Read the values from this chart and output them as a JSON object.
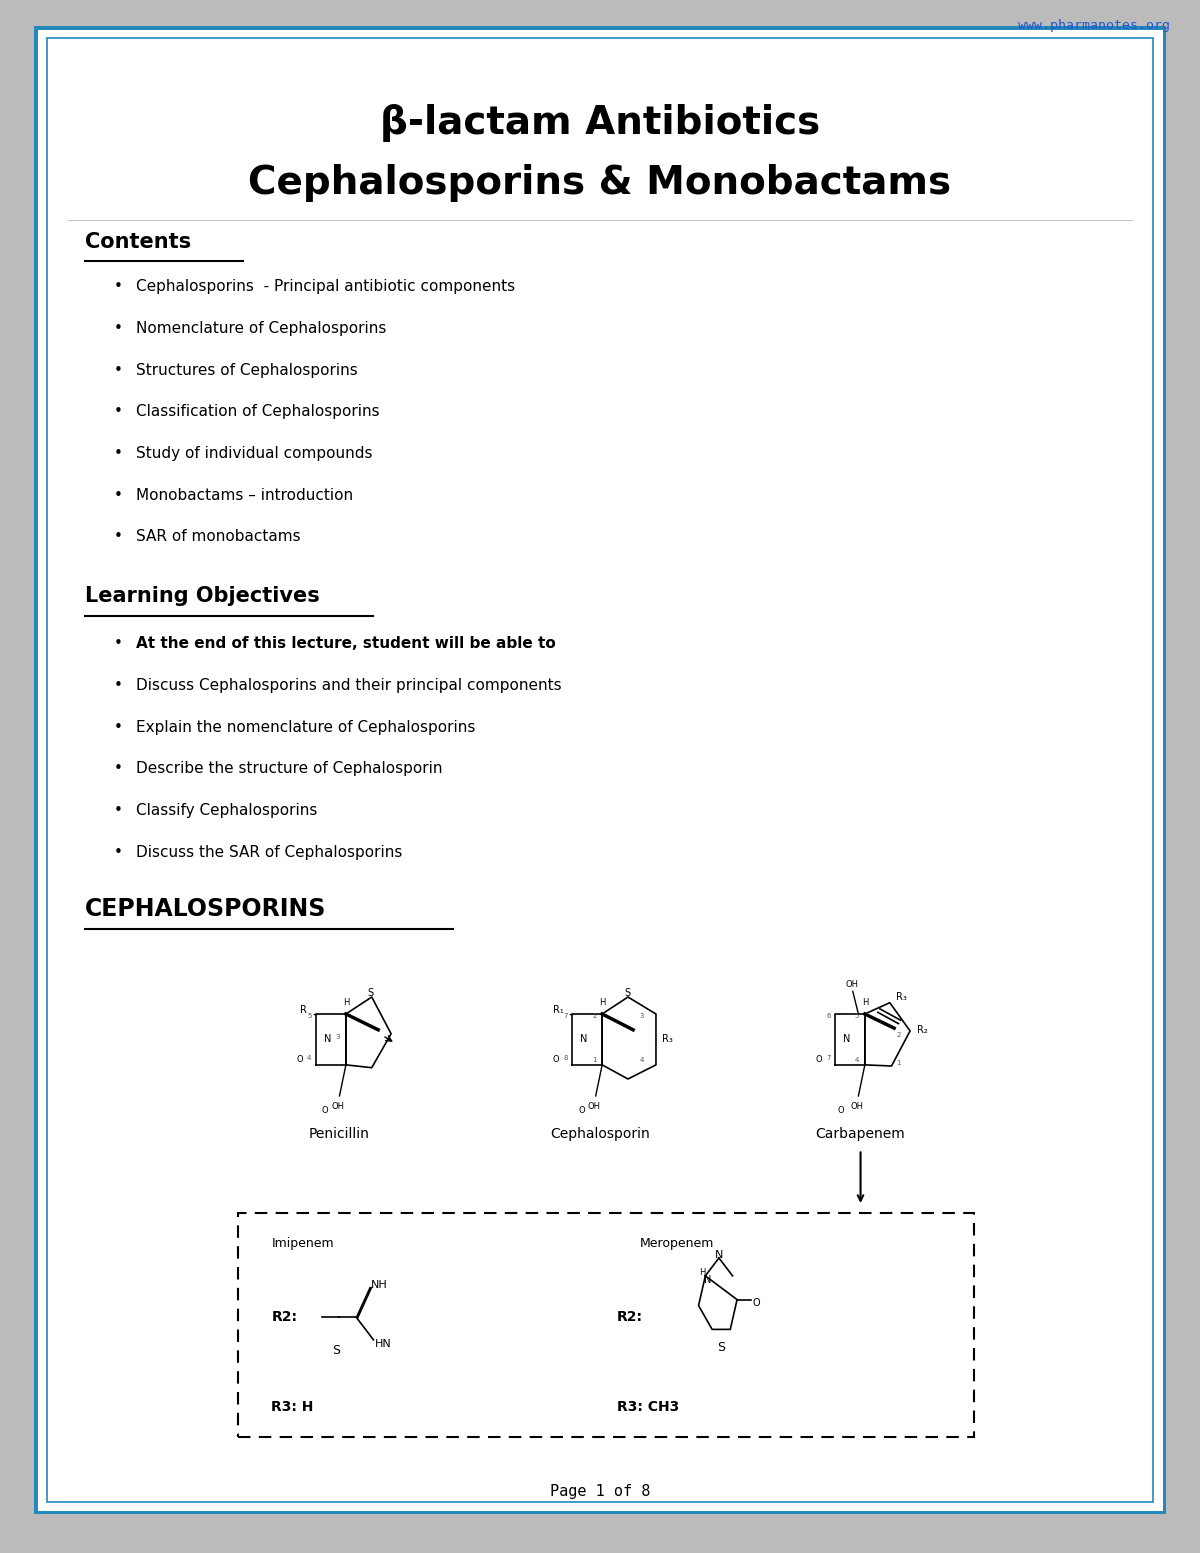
{
  "website": "www.pharmanotes.org",
  "title_line1": "β-lactam Antibiotics",
  "title_line2": "Cephalosporins & Monobactams",
  "background_color": "#ffffff",
  "border_color": "#2288BB",
  "contents_heading": "Contents",
  "contents_items": [
    "Cephalosporins  - Principal antibiotic components",
    "Nomenclature of Cephalosporins",
    "Structures of Cephalosporins",
    "Classification of Cephalosporins",
    "Study of individual compounds",
    "Monobactams – introduction",
    "SAR of monobactams"
  ],
  "learning_heading": "Learning Objectives",
  "learning_item_bold": "At the end of this lecture, student will be able to",
  "learning_items": [
    "Discuss Cephalosporins and their principal components",
    "Explain the nomenclature of Cephalosporins",
    "Describe the structure of Cephalosporin",
    "Classify Cephalosporins",
    "Discuss the SAR of Cephalosporins"
  ],
  "ceph_heading": "CEPHALOSPORINS",
  "struct_labels": [
    "Penicillin",
    "Cephalosporin",
    "Carbapenem"
  ],
  "imipenem_label": "Imipenem",
  "meropenem_label": "Meropenem",
  "r2_left": "R2:",
  "r2_right": "R2:",
  "r3_left": "R3: H",
  "r3_right": "R3: CH3",
  "page_footer": "Page 1 of 8"
}
